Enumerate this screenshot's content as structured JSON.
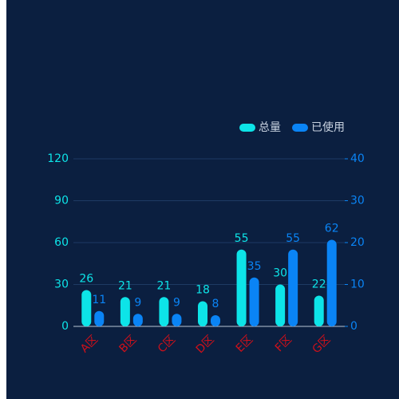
{
  "chart_data": {
    "type": "bar",
    "categories": [
      "A区",
      "B区",
      "C区",
      "D区",
      "E区",
      "F区",
      "G区"
    ],
    "series": [
      {
        "name": "总量",
        "color": "#0de4e8",
        "values": [
          26,
          21,
          21,
          18,
          55,
          30,
          22
        ]
      },
      {
        "name": "已使用",
        "color": "#0a84f5",
        "values": [
          11,
          9,
          9,
          8,
          35,
          55,
          62
        ]
      }
    ],
    "ylim": [
      0,
      120
    ],
    "yticks": [
      0,
      30,
      60,
      90,
      120
    ],
    "y2lim": [
      0,
      40
    ],
    "y2ticks": [
      0,
      10,
      20,
      30,
      40
    ],
    "grid": true,
    "legend": "top-right",
    "category_color": "#d0101a"
  }
}
